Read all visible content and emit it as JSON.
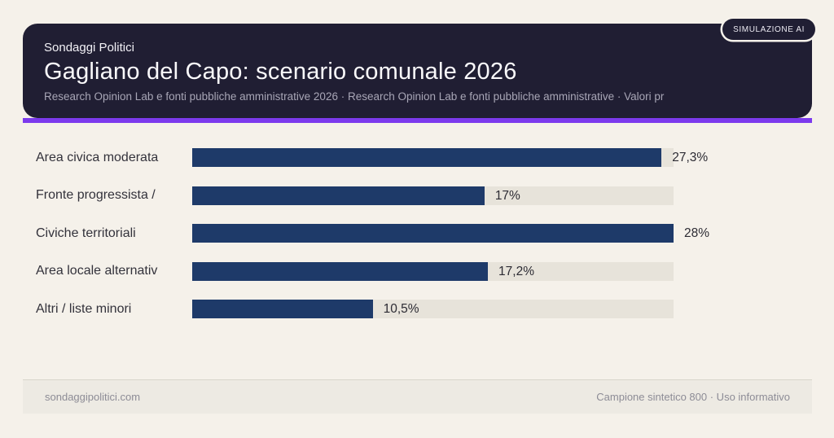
{
  "badge": {
    "label": "SIMULAZIONE AI"
  },
  "header": {
    "brand": "Sondaggi Politici",
    "title": "Gagliano del Capo: scenario comunale 2026",
    "subtitle": "Research Opinion Lab e fonti pubbliche amministrative 2026 · Research Opinion Lab e fonti pubbliche amministrative · Valori pr"
  },
  "chart_data": {
    "type": "bar",
    "orientation": "horizontal",
    "title": "Gagliano del Capo: scenario comunale 2026",
    "categories": [
      "Area civica moderata",
      "Fronte progressista /",
      "Civiche territoriali",
      "Area locale alternativ",
      "Altri / liste minori"
    ],
    "values": [
      27.3,
      17.0,
      28.0,
      17.2,
      10.5
    ],
    "value_labels": [
      "27,3%",
      "17%",
      "28%",
      "17,2%",
      "10,5%"
    ],
    "xlim": [
      0,
      28
    ],
    "grid": false,
    "legend": false,
    "bar_color": "#1e3a69",
    "track_color": "#e7e3da"
  },
  "footer": {
    "left": "sondaggipolitici.com",
    "right": "Campione sintetico 800 · Uso informativo"
  },
  "colors": {
    "background": "#f5f1ea",
    "header_bg": "#201e33",
    "accent": "#7c3aed",
    "label_text": "#33323b",
    "footer_band": "#edeae3"
  }
}
